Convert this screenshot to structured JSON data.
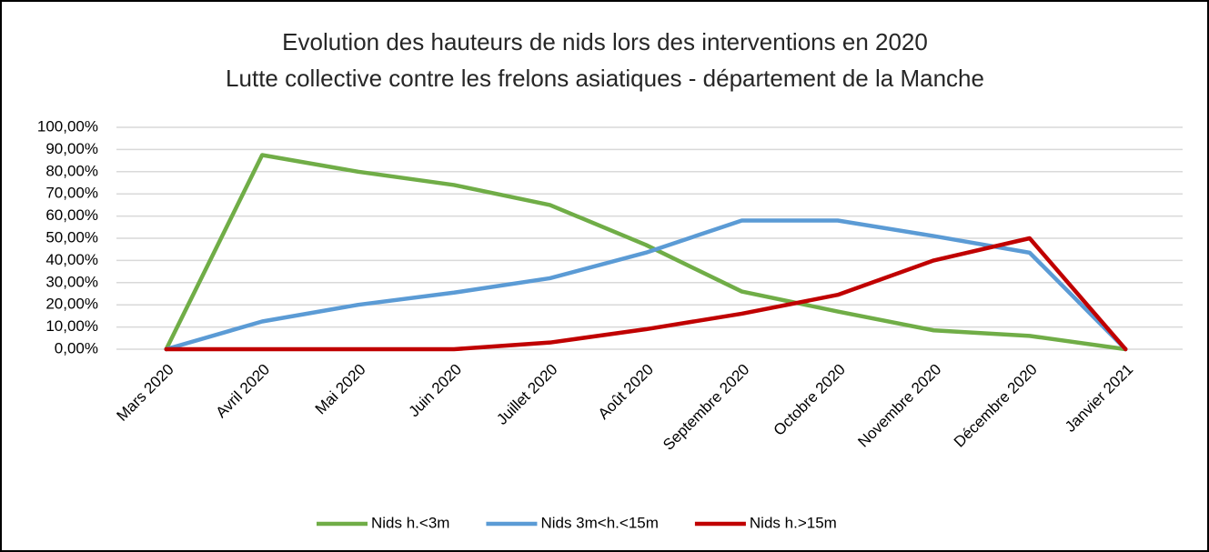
{
  "chart_data": {
    "type": "line",
    "title": "Evolution des hauteurs de nids lors des interventions en 2020",
    "subtitle": "Lutte collective contre les frelons asiatiques - département de la Manche",
    "categories": [
      "Mars 2020",
      "Avril 2020",
      "Mai 2020",
      "Juin 2020",
      "Juillet 2020",
      "Août 2020",
      "Septembre 2020",
      "Octobre 2020",
      "Novembre 2020",
      "Décembre 2020",
      "Janvier 2021"
    ],
    "series": [
      {
        "name": "Nids h.<3m",
        "color": "#70ad47",
        "values": [
          0,
          87.5,
          80,
          74,
          65,
          47,
          26,
          17,
          8.5,
          6,
          0
        ]
      },
      {
        "name": "Nids 3m<h.<15m",
        "color": "#5b9bd5",
        "values": [
          0,
          12.5,
          20,
          25.5,
          32,
          43.5,
          58,
          58,
          51,
          43.5,
          0
        ]
      },
      {
        "name": "Nids h.>15m",
        "color": "#c00000",
        "values": [
          0,
          0,
          0,
          0,
          3,
          9,
          16,
          24.5,
          40,
          50,
          0
        ]
      }
    ],
    "ylim": [
      0,
      100
    ],
    "yticks": [
      {
        "value": 0,
        "label": "0,00%"
      },
      {
        "value": 10,
        "label": "10,00%"
      },
      {
        "value": 20,
        "label": "20,00%"
      },
      {
        "value": 30,
        "label": "30,00%"
      },
      {
        "value": 40,
        "label": "40,00%"
      },
      {
        "value": 50,
        "label": "50,00%"
      },
      {
        "value": 60,
        "label": "60,00%"
      },
      {
        "value": 70,
        "label": "70,00%"
      },
      {
        "value": 80,
        "label": "80,00%"
      },
      {
        "value": 90,
        "label": "90,00%"
      },
      {
        "value": 100,
        "label": "100,00%"
      }
    ],
    "grid": true,
    "legend": "bottom"
  }
}
